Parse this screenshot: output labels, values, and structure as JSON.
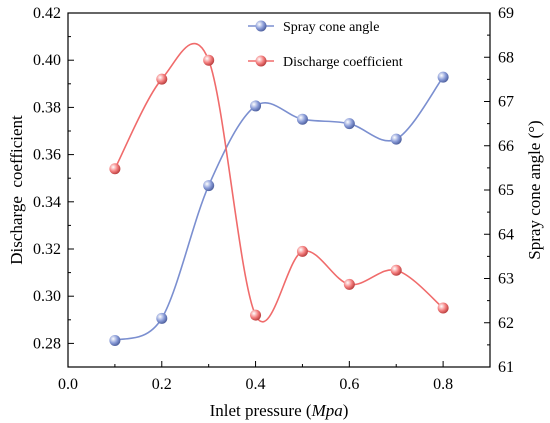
{
  "chart_data": {
    "type": "line",
    "title": "",
    "x": [
      0.1,
      0.2,
      0.3,
      0.4,
      0.5,
      0.6,
      0.7,
      0.8
    ],
    "xlabel": "Inlet pressure",
    "xlabel_unit": "Mpa",
    "xlim": [
      0.0,
      0.9
    ],
    "xticks": [
      "0.0",
      "0.2",
      "0.4",
      "0.6",
      "0.8"
    ],
    "ylabel_left": "Discharge  coefficient",
    "ylim_left": [
      0.27,
      0.42
    ],
    "yticks_left": [
      "0.28",
      "0.30",
      "0.32",
      "0.34",
      "0.36",
      "0.38",
      "0.40",
      "0.42"
    ],
    "ylabel_right": "Spray cone angle (°)",
    "ylim_right": [
      61,
      69
    ],
    "yticks_right": [
      "61",
      "62",
      "63",
      "64",
      "65",
      "66",
      "67",
      "68",
      "69"
    ],
    "grid": false,
    "legend_position": "top-right",
    "series": [
      {
        "name": "Spray cone angle",
        "axis": "right",
        "color": "#7b8fd0",
        "values": [
          61.6,
          62.1,
          65.1,
          66.9,
          66.6,
          66.5,
          66.15,
          67.55
        ]
      },
      {
        "name": "Discharge coefficient",
        "axis": "left",
        "color": "#f06b6b",
        "values": [
          0.354,
          0.392,
          0.4,
          0.292,
          0.319,
          0.305,
          0.311,
          0.295
        ]
      }
    ]
  }
}
